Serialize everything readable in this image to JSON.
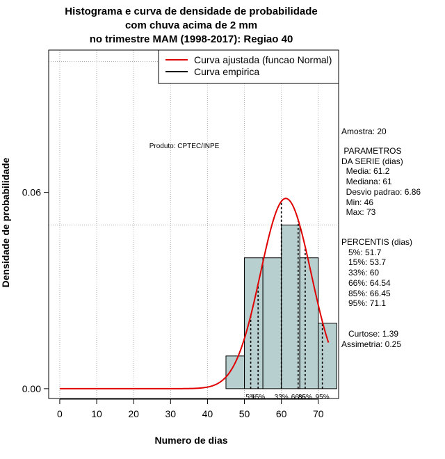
{
  "chart_data": {
    "type": "histogram",
    "title": [
      "Histograma e curva de densidade de probabilidade",
      "com chuva acima de 2 mm",
      "no trimestre MAM (1998-2017): Regiao 40"
    ],
    "xlabel": "Numero de dias",
    "ylabel": "Densidade de probabilidade",
    "xlim": [
      -3,
      75.5
    ],
    "ylim": [
      -0.003,
      0.1035
    ],
    "x_ticks": [
      0,
      10,
      20,
      30,
      40,
      50,
      60,
      70
    ],
    "y_ticks": [
      0.0,
      0.06
    ],
    "y_tick_labels": [
      "0.00",
      "0.06"
    ],
    "grid": true,
    "grid_x": [
      0,
      10,
      20,
      30,
      40,
      50,
      60,
      70
    ],
    "grid_y": [
      0.05,
      0.1
    ],
    "histogram": {
      "breaks": [
        45,
        50,
        55,
        60,
        65,
        70,
        75
      ],
      "density": [
        0.01,
        0.04,
        0.04,
        0.05,
        0.04,
        0.02
      ],
      "fill": "#b8cfcf"
    },
    "normal_fit": {
      "mean": 61.2,
      "sd": 6.86,
      "x_range": [
        0,
        72.8
      ],
      "color": "#e00000"
    },
    "empirical_curve": {
      "color": "#000000"
    },
    "legend": {
      "position": "top-right",
      "entries": [
        {
          "label": "Curva ajustada (funcao Normal)",
          "color": "#e00000"
        },
        {
          "label": "Curva empirica",
          "color": "#000000"
        }
      ]
    },
    "percentiles": [
      {
        "label": "5%",
        "value": 51.7
      },
      {
        "label": "15%",
        "value": 53.7
      },
      {
        "label": "33%",
        "value": 60
      },
      {
        "label": "66%",
        "value": 64.54
      },
      {
        "label": "85%",
        "value": 66.45
      },
      {
        "label": "95%",
        "value": 71.1
      }
    ],
    "annotations": {
      "produto": "Produto: CPTEC/INPE"
    }
  },
  "side_panel": {
    "amostra": "Amostra: 20",
    "parametros": " PARAMETROS\nDA SERIE (dias)\n  Media: 61.2\n  Mediana: 61\n  Desvio padrao: 6.86\n  Min: 46\n  Max: 73",
    "percentis": "PERCENTIS (dias)\n   5%: 51.7\n   15%: 53.7\n   33%: 60\n   66%: 64.54\n   85%: 66.45\n   95%: 71.1",
    "curtose": "   Curtose: 1.39\nAssimetria: 0.25"
  }
}
